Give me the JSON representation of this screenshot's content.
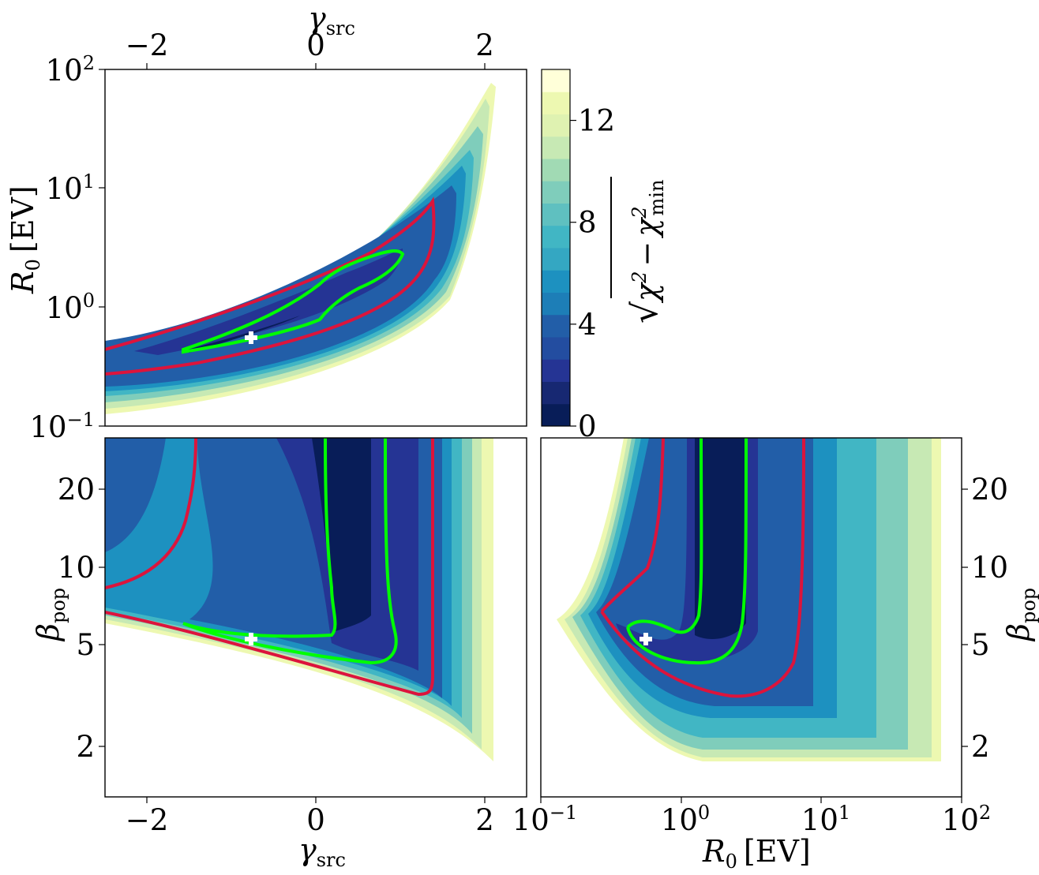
{
  "colors": {
    "colormap": [
      "#081d58",
      "#172872",
      "#253494",
      "#234da0",
      "#225ea8",
      "#1d7eb7",
      "#1d91c0",
      "#34a7c2",
      "#41b6c4",
      "#5fc0c0",
      "#7fcdbb",
      "#a1dab4",
      "#c7e9b4",
      "#dff2b1",
      "#edf8b1",
      "#ffffd9"
    ],
    "contour_1sigma": "#00ff00",
    "contour_2sigma": "#dc143c",
    "best_fit_marker": "#ffffff"
  },
  "chart_data": [
    {
      "id": "top-left",
      "type": "heatmap",
      "x_param": "gamma_src",
      "y_param": "R0",
      "xlim": [
        -2.5,
        2.5
      ],
      "ylim": [
        0.1,
        100
      ],
      "yscale": "log",
      "x_ticks_top": [
        "−2",
        "0",
        "2"
      ],
      "y_ticks": [
        "10",
        "10",
        "10",
        "10"
      ],
      "y_tick_exponents": [
        "2",
        "1",
        "0",
        "−1"
      ],
      "best_fit": {
        "x": -0.75,
        "y": 0.58
      }
    },
    {
      "id": "bottom-left",
      "type": "heatmap",
      "x_param": "gamma_src",
      "y_param": "beta_pop",
      "xlim": [
        -2.5,
        2.5
      ],
      "ylim": [
        1.3,
        32
      ],
      "yscale": "log",
      "x_ticks": [
        "−2",
        "0",
        "2"
      ],
      "y_ticks": [
        "20",
        "10",
        "5",
        "2"
      ],
      "best_fit": {
        "x": -0.75,
        "y": 5.3
      }
    },
    {
      "id": "bottom-right",
      "type": "heatmap",
      "x_param": "R0",
      "y_param": "beta_pop",
      "xlim": [
        0.1,
        100
      ],
      "xscale": "log",
      "ylim": [
        1.3,
        32
      ],
      "yscale": "log",
      "x_ticks": [
        "10",
        "10",
        "10",
        "10"
      ],
      "x_tick_exponents": [
        "−1",
        "0",
        "1",
        "2"
      ],
      "y_ticks_right": [
        "20",
        "10",
        "5",
        "2"
      ],
      "best_fit": {
        "x": 0.58,
        "y": 5.3
      }
    }
  ],
  "colorbar": {
    "ticks": [
      "0",
      "4",
      "8",
      "12"
    ],
    "tick_values": [
      0,
      4,
      8,
      12
    ],
    "range": [
      0,
      14
    ]
  },
  "labels": {
    "gamma_symbol": "γ",
    "gamma_sub": "src",
    "r0_symbol": "R",
    "r0_sub": "0",
    "r0_unit": "[EV]",
    "beta_symbol": "β",
    "beta_sub": "pop",
    "cbar_chi": "χ",
    "cbar_sup": "2",
    "cbar_minus": "−",
    "cbar_sub_min": "min",
    "cbar_sqrt": "√"
  }
}
